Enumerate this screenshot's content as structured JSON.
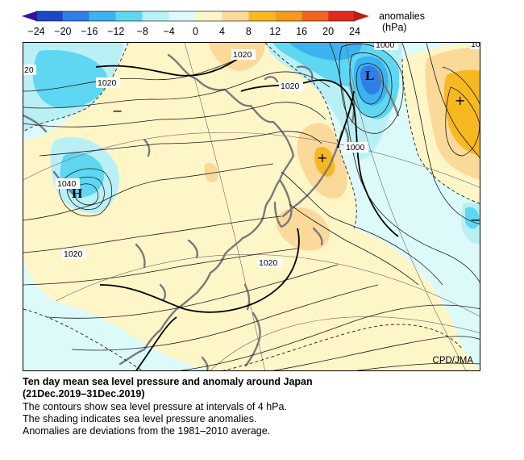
{
  "colorbar": {
    "title": "anomalies",
    "unit": "(hPa)",
    "ticks": [
      "−24",
      "−20",
      "−16",
      "−12",
      "−8",
      "−4",
      "0",
      "4",
      "8",
      "12",
      "16",
      "20",
      "24"
    ],
    "bins": [
      {
        "from": -24,
        "to": -20,
        "color": "#1a46c8"
      },
      {
        "from": -20,
        "to": -16,
        "color": "#2f7fe6"
      },
      {
        "from": -16,
        "to": -12,
        "color": "#3cb2f0"
      },
      {
        "from": -12,
        "to": -8,
        "color": "#5fd7f2"
      },
      {
        "from": -8,
        "to": -4,
        "color": "#b9f0f6"
      },
      {
        "from": -4,
        "to": 0,
        "color": "#ddfafb"
      },
      {
        "from": 0,
        "to": 4,
        "color": "#fff6c8"
      },
      {
        "from": 4,
        "to": 8,
        "color": "#fbd99a"
      },
      {
        "from": 8,
        "to": 12,
        "color": "#f8b820"
      },
      {
        "from": 12,
        "to": 16,
        "color": "#f59a1e"
      },
      {
        "from": 16,
        "to": 20,
        "color": "#f0641e"
      },
      {
        "from": 20,
        "to": 24,
        "color": "#e02a1c"
      }
    ]
  },
  "map": {
    "contour_interval_hpa": 4,
    "contour_labels": [
      "1020",
      "1020",
      "1020",
      "1000",
      "1000",
      "20",
      "10",
      "1040",
      "1020",
      "1020"
    ],
    "pressure_centers": [
      {
        "letter": "H",
        "name": "high-center"
      },
      {
        "letter": "L",
        "name": "low-center"
      }
    ],
    "anomaly_signs": [
      "+",
      "+",
      "−",
      "−"
    ],
    "credit": "CPD/JMA"
  },
  "caption": {
    "title_line1": "Ten day mean sea level pressure and anomaly around Japan",
    "title_line2": "(21Dec.2019–31Dec.2019)",
    "line1": "The contours show sea level pressure at intervals of 4 hPa.",
    "line2": "The shading indicates sea level pressure anomalies.",
    "line3": "Anomalies are deviations from the 1981–2010 average."
  }
}
